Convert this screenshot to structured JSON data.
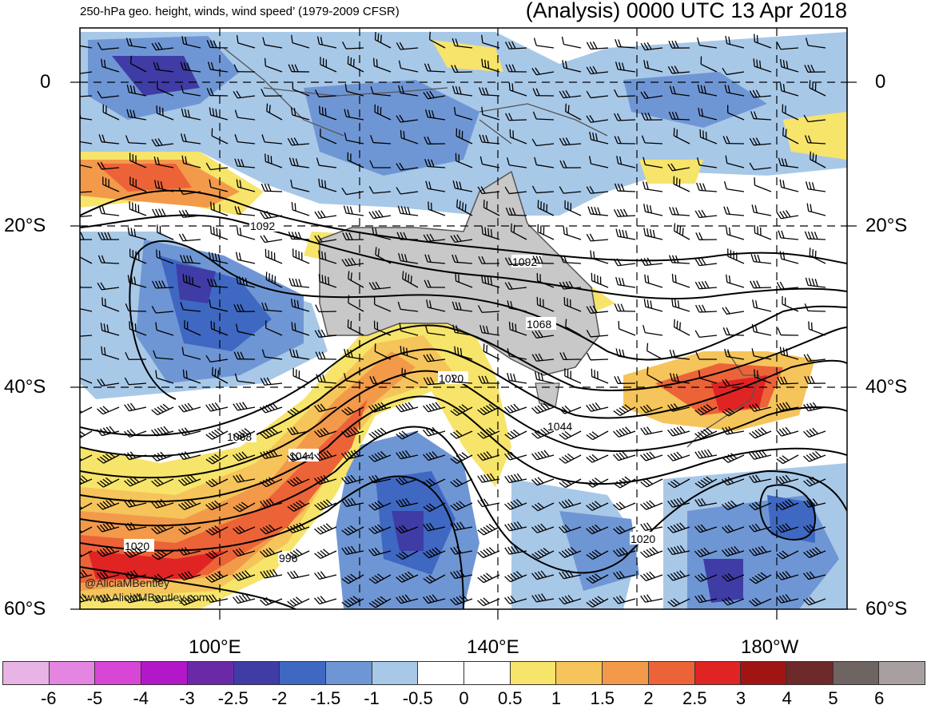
{
  "header": {
    "subtitle": "250-hPa geo. height, winds, wind speed’ (1979-2009 CFSR)",
    "title": "(Analysis) 0000 UTC 13 Apr 2018"
  },
  "axes": {
    "lat_labels_left": [
      "0",
      "20°S",
      "40°S",
      "60°S"
    ],
    "lat_labels_right": [
      "0",
      "20°S",
      "40°S",
      "60°S"
    ],
    "lon_labels": [
      "100°E",
      "140°E",
      "180°W"
    ]
  },
  "contours": {
    "labels": [
      "1092",
      "1092",
      "1068",
      "1068",
      "1044",
      "1044",
      "1020",
      "1020",
      "1020",
      "996"
    ]
  },
  "credit": {
    "handle": "@AliciaMBentley",
    "website": "www.AliciaMBentley.com"
  },
  "colorbar": {
    "colors": [
      "#e8b4e6",
      "#e485e2",
      "#d846d6",
      "#b218c8",
      "#6a2aa8",
      "#3f3ca6",
      "#3f68c2",
      "#6f96d4",
      "#a8c8e8",
      "#ffffff",
      "#ffffff",
      "#f7e46a",
      "#f5c45a",
      "#f29a4a",
      "#ec6338",
      "#e02424",
      "#a01414",
      "#6e2a2a",
      "#6e6462",
      "#a8a0a0"
    ],
    "ticks": [
      "-6",
      "-5",
      "-4",
      "-3",
      "-2.5",
      "-2",
      "-1.5",
      "-1",
      "-0.5",
      "0",
      "0.5",
      "1",
      "1.5",
      "2",
      "2.5",
      "3",
      "4",
      "5",
      "6"
    ]
  },
  "style": {
    "land": "#c8c8c8",
    "coast": "#555555",
    "contour": "#000000",
    "grid": "#000000"
  }
}
